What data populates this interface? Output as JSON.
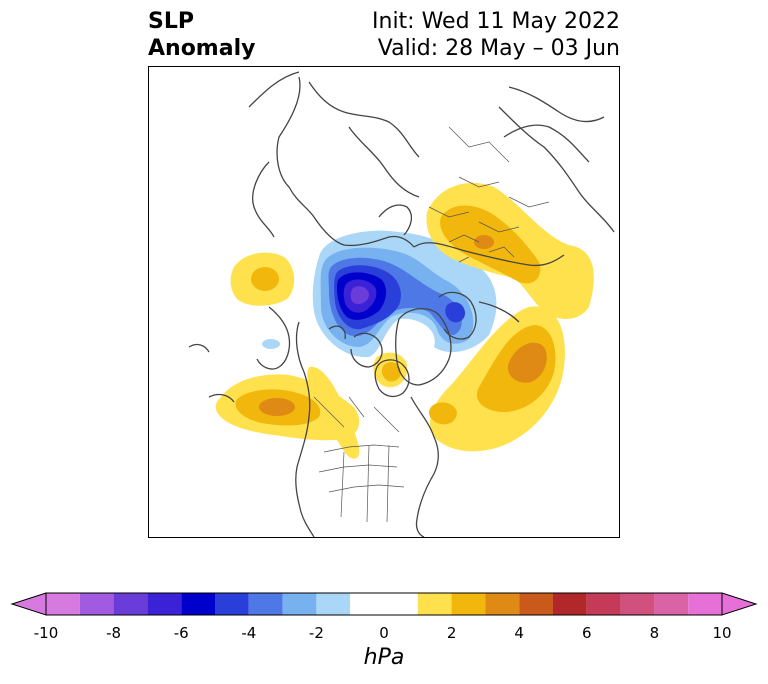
{
  "title": {
    "left_line1": "SLP",
    "left_line2": "Anomaly",
    "right_line1": "Init: Wed 11 May 2022",
    "right_line2": "Valid: 28 May – 03 Jun"
  },
  "map": {
    "projection": "north-polar-stereographic",
    "variable": "sea level pressure anomaly",
    "coastline_color": "#444444",
    "anomaly_features": [
      {
        "kind": "negative",
        "region": "Arctic / Canadian archipelago",
        "peak": -9
      },
      {
        "kind": "negative",
        "region": "Kara Sea",
        "peak": -5
      },
      {
        "kind": "positive",
        "region": "Eastern Europe / Western Russia",
        "peak": 3
      },
      {
        "kind": "positive",
        "region": "Siberia",
        "peak": 2
      },
      {
        "kind": "positive",
        "region": "Gulf of Alaska / NE Pacific",
        "peak": 3
      },
      {
        "kind": "positive",
        "region": "Western Canada",
        "peak": 1
      },
      {
        "kind": "positive",
        "region": "North Atlantic",
        "peak": 3
      },
      {
        "kind": "positive",
        "region": "Hudson Bay",
        "peak": 2
      }
    ]
  },
  "colorbar": {
    "unit": "hPa",
    "ticks": [
      "-10",
      "-8",
      "-6",
      "-4",
      "-2",
      "0",
      "2",
      "4",
      "6",
      "8",
      "10"
    ],
    "levels": [
      -10,
      -9,
      -8,
      -7,
      -6,
      -5,
      -4,
      -3,
      -2,
      -1,
      1,
      2,
      3,
      4,
      5,
      6,
      7,
      8,
      9,
      10
    ],
    "under_color": "#d67ae0",
    "over_color": "#e66fd8",
    "colors": [
      "#d67ae0",
      "#a15ae0",
      "#6a3ddb",
      "#3b22d6",
      "#0000cc",
      "#2a3fd9",
      "#4e78e6",
      "#78b1f0",
      "#aad7f7",
      "#ffffff",
      "#ffe14d",
      "#f2b70c",
      "#de8a14",
      "#c95a1c",
      "#b2282a",
      "#c43a58",
      "#d0507e",
      "#da63a6",
      "#e66fd8"
    ]
  }
}
